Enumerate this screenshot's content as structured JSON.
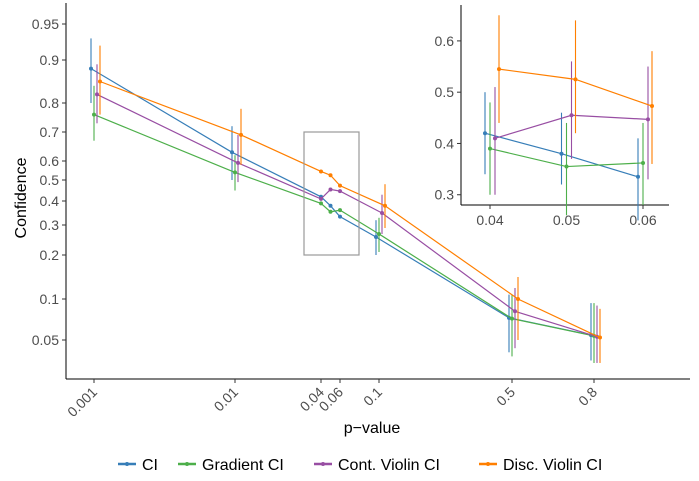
{
  "chart_data": {
    "type": "line",
    "xlabel": "p−value",
    "ylabel": "Confidence",
    "x_scale": "custom",
    "y_scale": "custom",
    "x_ticks": [
      0.001,
      0.01,
      0.04,
      0.06,
      0.1,
      0.5,
      0.8
    ],
    "x_tick_labels": [
      "0.001",
      "0.01",
      "0.04",
      "0.06",
      "0.1",
      "0.5",
      "0.8"
    ],
    "y_ticks": [
      0.05,
      0.1,
      0.2,
      0.3,
      0.4,
      0.5,
      0.6,
      0.7,
      0.8,
      0.9,
      0.95
    ],
    "y_tick_labels": [
      "0.05",
      "0.1",
      "0.2",
      "0.3",
      "0.4",
      "0.5",
      "0.6",
      "0.7",
      "0.8",
      "0.9",
      "0.95"
    ],
    "grid": false,
    "legend_position": "bottom",
    "series": [
      {
        "name": "CI",
        "color": "#377eb8",
        "x": [
          0.001,
          0.01,
          0.04,
          0.05,
          0.06,
          0.1,
          0.5,
          0.8
        ],
        "y": [
          0.88,
          0.63,
          0.42,
          0.38,
          0.335,
          0.26,
          0.077,
          0.056
        ],
        "lower": [
          0.8,
          0.5,
          0.34,
          0.32,
          0.25,
          0.2,
          0.035,
          0.025
        ],
        "upper": [
          0.93,
          0.72,
          0.5,
          0.46,
          0.41,
          0.32,
          0.11,
          0.095
        ]
      },
      {
        "name": "Gradient CI",
        "color": "#4daf4a",
        "x": [
          0.001,
          0.01,
          0.04,
          0.05,
          0.06,
          0.1,
          0.5,
          0.8
        ],
        "y": [
          0.76,
          0.54,
          0.39,
          0.355,
          0.362,
          0.27,
          0.076,
          0.055
        ],
        "lower": [
          0.67,
          0.45,
          0.3,
          0.26,
          0.28,
          0.21,
          0.03,
          0.022
        ],
        "upper": [
          0.84,
          0.62,
          0.48,
          0.44,
          0.44,
          0.33,
          0.11,
          0.095
        ]
      },
      {
        "name": "Cont. Violin CI",
        "color": "#984ea3",
        "x": [
          0.001,
          0.01,
          0.04,
          0.05,
          0.06,
          0.1,
          0.5,
          0.8
        ],
        "y": [
          0.82,
          0.59,
          0.41,
          0.455,
          0.447,
          0.35,
          0.085,
          0.054
        ],
        "lower": [
          0.73,
          0.49,
          0.3,
          0.37,
          0.33,
          0.27,
          0.04,
          0.022
        ],
        "upper": [
          0.89,
          0.69,
          0.51,
          0.56,
          0.55,
          0.43,
          0.125,
          0.092
        ]
      },
      {
        "name": "Disc. Violin CI",
        "color": "#ff7f00",
        "x": [
          0.001,
          0.01,
          0.04,
          0.05,
          0.06,
          0.1,
          0.5,
          0.8
        ],
        "y": [
          0.85,
          0.69,
          0.545,
          0.525,
          0.473,
          0.38,
          0.1,
          0.053
        ],
        "lower": [
          0.76,
          0.58,
          0.44,
          0.42,
          0.36,
          0.29,
          0.05,
          0.022
        ],
        "upper": [
          0.92,
          0.78,
          0.65,
          0.64,
          0.58,
          0.48,
          0.15,
          0.088
        ]
      }
    ],
    "highlight_box": {
      "x": [
        0.04,
        0.06
      ],
      "y": [
        0.2,
        0.7
      ]
    },
    "inset": {
      "xlim": [
        0.038,
        0.064
      ],
      "ylim": [
        0.28,
        0.67
      ],
      "x_ticks": [
        0.04,
        0.05,
        0.06
      ],
      "x_tick_labels": [
        "0.04",
        "0.05",
        "0.06"
      ],
      "y_ticks": [
        0.3,
        0.4,
        0.5,
        0.6
      ],
      "y_tick_labels": [
        "0.3",
        "0.4",
        "0.5",
        "0.6"
      ]
    }
  }
}
